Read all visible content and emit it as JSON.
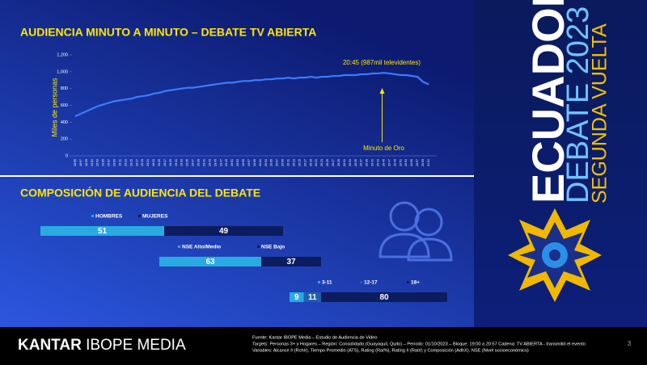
{
  "chart_data": [
    {
      "type": "line",
      "title": "AUDIENCIA MINUTO A MINUTO – DEBATE TV ABIERTA",
      "y_label": "Miles de personas",
      "categories": [
        "18:55",
        "18:57",
        "18:59",
        "19:01",
        "19:03",
        "19:05",
        "19:07",
        "19:09",
        "19:11",
        "19:13",
        "19:15",
        "19:17",
        "19:19",
        "19:21",
        "19:23",
        "19:25",
        "19:27",
        "19:29",
        "19:31",
        "19:33",
        "19:35",
        "19:37",
        "19:39",
        "19:41",
        "19:43",
        "19:45",
        "19:47",
        "19:49",
        "19:51",
        "19:53",
        "19:55",
        "19:57",
        "19:59",
        "20:01",
        "20:03",
        "20:05",
        "20:07",
        "20:09",
        "20:11",
        "20:13",
        "20:15",
        "20:17",
        "20:19",
        "20:21",
        "20:23",
        "20:25",
        "20:27",
        "20:29",
        "20:31",
        "20:33",
        "20:35",
        "20:37",
        "20:39",
        "20:41",
        "20:43",
        "20:45",
        "20:47",
        "20:49",
        "20:51",
        "20:53",
        "20:55",
        "20:57",
        "20:59",
        "21:01"
      ],
      "values": [
        470,
        500,
        530,
        560,
        590,
        610,
        630,
        650,
        660,
        670,
        680,
        700,
        710,
        720,
        740,
        750,
        770,
        780,
        790,
        800,
        810,
        810,
        820,
        830,
        840,
        850,
        860,
        870,
        870,
        880,
        890,
        890,
        900,
        900,
        910,
        910,
        920,
        920,
        930,
        920,
        930,
        930,
        940,
        930,
        940,
        940,
        950,
        950,
        960,
        960,
        960,
        970,
        970,
        980,
        980,
        987,
        980,
        970,
        960,
        960,
        950,
        940,
        880,
        850
      ],
      "color": "#3d7bff",
      "ylim": [
        0,
        1200
      ],
      "yticks": [
        0,
        200,
        400,
        600,
        800,
        {
          "value": 1000,
          "label": "1,000"
        },
        {
          "value": 1200,
          "label": "1,200"
        }
      ],
      "annotations": [
        {
          "text": "20:45 (987mil televidentes)"
        },
        {
          "text": "Minuto de Oro"
        }
      ]
    },
    {
      "type": "stacked_bar",
      "title": "COMPOSICIÓN DE AUDIENCIA DEL DEBATE",
      "groups": [
        {
          "series": [
            {
              "name": "HOMBRES",
              "color": "#29abe2",
              "value": 51
            },
            {
              "name": "MUJERES",
              "color": "#0d1c5e",
              "value": 49
            }
          ]
        },
        {
          "series": [
            {
              "name": "NSE Alto/Medio",
              "color": "#29abe2",
              "value": 63
            },
            {
              "name": "NSE Bajo",
              "color": "#0d1c5e",
              "value": 37
            }
          ]
        },
        {
          "series": [
            {
              "name": "3-11",
              "color": "#29abe2",
              "value": 9
            },
            {
              "name": "12-17",
              "color": "#1d5fb0",
              "value": 11
            },
            {
              "name": "18+",
              "color": "#0d1c5e",
              "value": 80
            }
          ]
        }
      ]
    }
  ],
  "brand": {
    "line1": "ECUADOR",
    "line2": "DEBATE 2023",
    "line3": "SEGUNDA VUELTA"
  },
  "footer": {
    "logo_bold": "KANTAR",
    "logo_rest": "IBOPE MEDIA",
    "source": [
      "Fuente: Kantar IBOPE Media – Estudio de Audiencia de Video",
      "Targets: Personas 3+ y Hogares – Región: Consolidado (Guayaquil, Quito) – Periodo: 01/10/2023 – Bloque: 19:00 a 20:57 Cadena: TV ABIERTA - transmitió el evento",
      "Variables: Alcance # (Rch#), Tiempo Promedio (ATS), Rating (Rat%), Rating # (Rat#) y Composición (AdhX). NSE (Nivel socioeconómico)"
    ],
    "page": "3"
  }
}
